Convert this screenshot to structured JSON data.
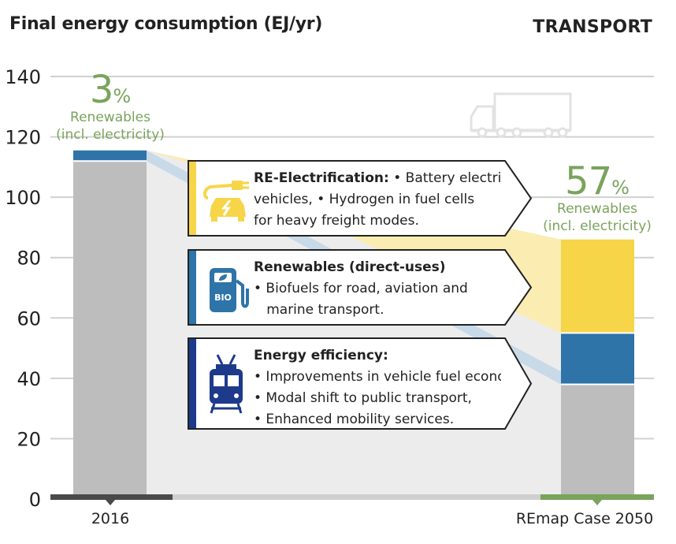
{
  "header": {
    "title": "Final energy consumption (EJ/yr)",
    "sector": "TRANSPORT"
  },
  "chart_data": {
    "type": "bar",
    "stacked": true,
    "categories": [
      "2016",
      "REmap Case 2050"
    ],
    "ylim": [
      0,
      140
    ],
    "yticks": [
      0,
      20,
      40,
      60,
      80,
      100,
      120,
      140
    ],
    "ytick_labels": [
      "0",
      "20",
      "40",
      "60",
      "80",
      "100",
      "120",
      "140"
    ],
    "grid": true,
    "series": [
      {
        "key": "base",
        "values": [
          112,
          38
        ],
        "color": "#bdbdbd"
      },
      {
        "key": "bio",
        "values": [
          3.5,
          17
        ],
        "color": "#2e74a8"
      },
      {
        "key": "electrification",
        "values": [
          0,
          31
        ],
        "color": "#f7d548"
      }
    ],
    "renewable_share": [
      {
        "value": "3",
        "unit": "%",
        "label_line1": "Renewables",
        "label_line2": "(incl. electricity)"
      },
      {
        "value": "57",
        "unit": "%",
        "label_line1": "Renewables",
        "label_line2": "(incl. electricity)"
      }
    ]
  },
  "boxes": [
    {
      "id": "electrification",
      "color": "#f7d548",
      "icon": "electric-car-plug-icon",
      "lines": [
        {
          "bold": "RE-Electrification:",
          "text": " • Battery electric"
        },
        {
          "bold": "",
          "text": "vehicles, • Hydrogen in fuel cells"
        },
        {
          "bold": "",
          "text": "for heavy freight modes."
        }
      ]
    },
    {
      "id": "renewables",
      "color": "#2e74a8",
      "icon": "biofuel-pump-icon",
      "icon_text": "BIO",
      "lines": [
        {
          "bold": "Renewables (direct-uses)",
          "text": ""
        },
        {
          "bold": "",
          "text": "• Biofuels for road, aviation and"
        },
        {
          "bold": "",
          "text": "   marine transport."
        }
      ]
    },
    {
      "id": "efficiency",
      "color": "#1e3a8a",
      "icon": "tram-icon",
      "lines": [
        {
          "bold": "Energy efficiency:",
          "text": ""
        },
        {
          "bold": "",
          "text": "• Improvements in vehicle fuel economy,"
        },
        {
          "bold": "",
          "text": "• Modal shift to public transport,"
        },
        {
          "bold": "",
          "text": "• Enhanced mobility services."
        }
      ]
    }
  ],
  "decor": {
    "truck_icon": "truck-icon"
  }
}
